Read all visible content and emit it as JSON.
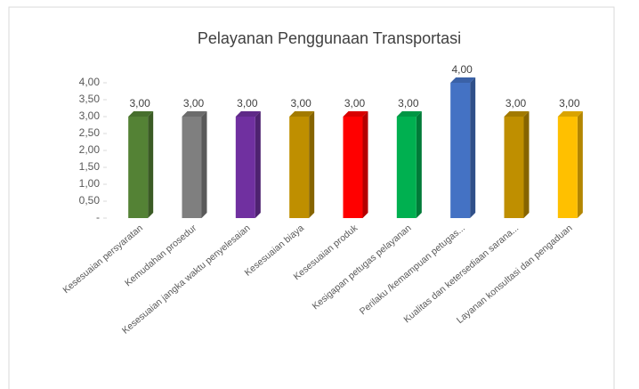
{
  "chart_data": {
    "type": "bar",
    "title": "Pelayanan Penggunaan Transportasi",
    "categories": [
      "Kesesuaian persyaratan",
      "Kemudahan prosedur",
      "Kesesuaian jangka waktu penyelesaian",
      "Kesesuaian biaya",
      "Kesesuaian produk",
      "Kesigapan petugas pelayanan",
      "Perilaku /kemampuan petugas...",
      "Kualitas dan ketersediaan sarana...",
      "Layanan konsultasi dan pengaduan"
    ],
    "values": [
      3,
      3,
      3,
      3,
      3,
      3,
      4,
      3,
      3
    ],
    "value_labels": [
      "3,00",
      "3,00",
      "3,00",
      "3,00",
      "3,00",
      "3,00",
      "4,00",
      "3,00",
      "3,00"
    ],
    "colors": [
      "#548235",
      "#7f7f7f",
      "#7030a0",
      "#bf8f00",
      "#ff0000",
      "#00b050",
      "#4472c4",
      "#bf8f00",
      "#ffc000"
    ],
    "ylim": [
      0,
      4
    ],
    "yticks": [
      {
        "value": 0,
        "label": "-"
      },
      {
        "value": 0.5,
        "label": "0,50"
      },
      {
        "value": 1,
        "label": "1,00"
      },
      {
        "value": 1.5,
        "label": "1,50"
      },
      {
        "value": 2,
        "label": "2,00"
      },
      {
        "value": 2.5,
        "label": "2,50"
      },
      {
        "value": 3,
        "label": "3,00"
      },
      {
        "value": 3.5,
        "label": "3,50"
      },
      {
        "value": 4,
        "label": "4,00"
      }
    ],
    "grid": false
  }
}
